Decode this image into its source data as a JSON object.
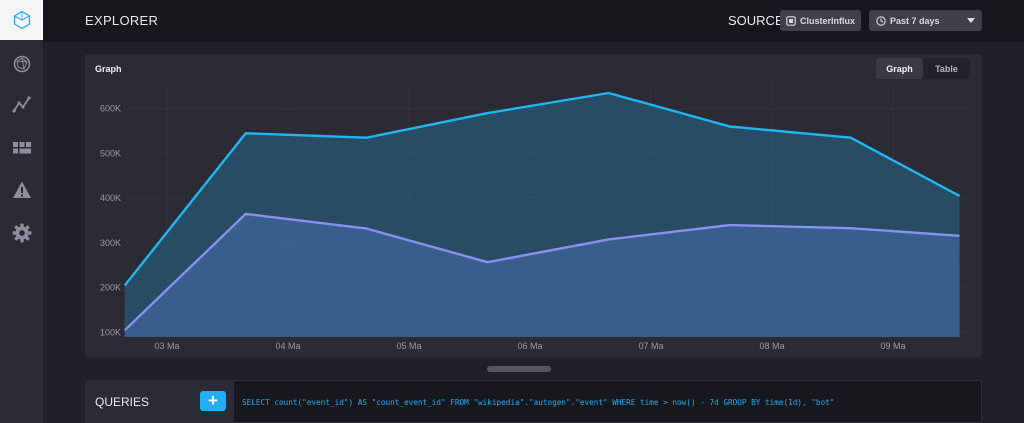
{
  "app": {
    "page_title": "EXPLORER"
  },
  "sidebar": {
    "items": [
      {
        "icon": "logo-icon",
        "active": true
      },
      {
        "icon": "host-icon"
      },
      {
        "icon": "graph-icon"
      },
      {
        "icon": "dashboards-icon"
      },
      {
        "icon": "alerts-icon"
      },
      {
        "icon": "settings-icon"
      }
    ]
  },
  "header": {
    "source_label": "SOURCE:",
    "source_name": "ClusterInflux",
    "time_range": "Past 7 days"
  },
  "panel": {
    "title": "Graph",
    "toggle": {
      "graph": "Graph",
      "table": "Table",
      "selected": "Graph"
    }
  },
  "chart_data": {
    "type": "area",
    "title": "",
    "xlabel": "",
    "ylabel": "",
    "x": [
      "03 Ma",
      "04 Ma",
      "05 Ma",
      "06 Ma",
      "07 Ma",
      "08 Ma",
      "09 Ma"
    ],
    "ylim": [
      90000,
      655000
    ],
    "yticks": [
      100000,
      200000,
      300000,
      400000,
      500000,
      600000
    ],
    "ytick_labels": [
      "100K",
      "200K",
      "300K",
      "400K",
      "500K",
      "600K"
    ],
    "grid": true,
    "legend": "none",
    "series": [
      {
        "color": "#21b6f3",
        "x": [
          -0.35,
          0.65,
          1.65,
          2.65,
          3.65,
          4.65,
          5.65,
          6.55
        ],
        "values": [
          205000,
          545000,
          535000,
          590000,
          635000,
          560000,
          535000,
          405000
        ]
      },
      {
        "color": "#8a8ff2",
        "x": [
          -0.35,
          0.65,
          1.65,
          2.65,
          3.65,
          4.65,
          5.65,
          6.55
        ],
        "values": [
          105000,
          365000,
          332000,
          257000,
          308000,
          340000,
          333000,
          316000
        ]
      }
    ]
  },
  "queries": {
    "title": "QUERIES",
    "add_label": "+",
    "query_text": "SELECT count(\"event_id\") AS \"count_event_id\" FROM \"wikipedia\".\"autogen\".\"event\" WHERE time > now() - 7d GROUP BY time(1d), \"bot\""
  }
}
